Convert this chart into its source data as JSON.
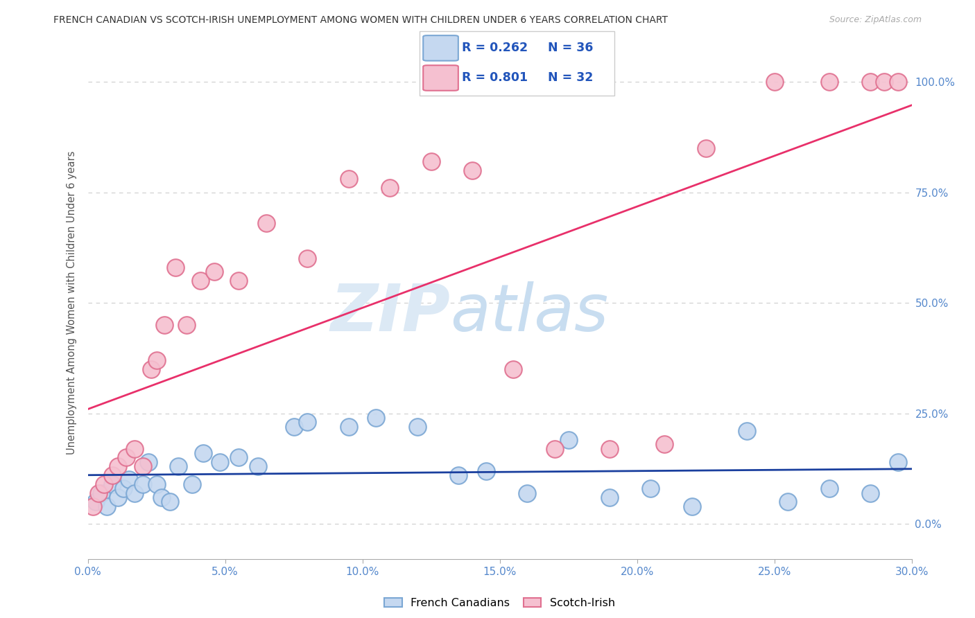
{
  "title": "FRENCH CANADIAN VS SCOTCH-IRISH UNEMPLOYMENT AMONG WOMEN WITH CHILDREN UNDER 6 YEARS CORRELATION CHART",
  "source": "Source: ZipAtlas.com",
  "ylabel": "Unemployment Among Women with Children Under 6 years",
  "xlim": [
    0.0,
    30.0
  ],
  "ylim": [
    -8.0,
    108.0
  ],
  "ylim_data": [
    0.0,
    100.0
  ],
  "xticks": [
    0.0,
    5.0,
    10.0,
    15.0,
    20.0,
    25.0,
    30.0
  ],
  "yticks": [
    0.0,
    25.0,
    50.0,
    75.0,
    100.0
  ],
  "legend_r1": "R = 0.262",
  "legend_n1": "N = 36",
  "legend_r2": "R = 0.801",
  "legend_n2": "N = 32",
  "color_fc_face": "#c5d8f0",
  "color_fc_edge": "#7ba7d4",
  "color_si_face": "#f5c0d0",
  "color_si_edge": "#e07090",
  "color_fc_line": "#1a3f9e",
  "color_si_line": "#e8306a",
  "color_title": "#333333",
  "color_source": "#aaaaaa",
  "color_axis": "#5588cc",
  "color_grid": "#cccccc",
  "color_legend_text": "#2255bb",
  "color_legend_text2": "#333333",
  "label_fc": "French Canadians",
  "label_si": "Scotch-Irish",
  "fc_x": [
    0.3,
    0.5,
    0.7,
    0.9,
    1.1,
    1.3,
    1.5,
    1.7,
    2.0,
    2.2,
    2.5,
    2.7,
    3.0,
    3.3,
    3.8,
    4.2,
    4.8,
    5.5,
    6.2,
    7.5,
    8.0,
    9.5,
    10.5,
    12.0,
    13.5,
    14.5,
    16.0,
    17.5,
    19.0,
    20.5,
    22.0,
    24.0,
    25.5,
    27.0,
    28.5,
    29.5
  ],
  "fc_y": [
    5.0,
    7.0,
    4.0,
    9.0,
    6.0,
    8.0,
    10.0,
    7.0,
    9.0,
    14.0,
    9.0,
    6.0,
    5.0,
    13.0,
    9.0,
    16.0,
    14.0,
    15.0,
    13.0,
    22.0,
    23.0,
    22.0,
    24.0,
    22.0,
    11.0,
    12.0,
    7.0,
    19.0,
    6.0,
    8.0,
    4.0,
    21.0,
    5.0,
    8.0,
    7.0,
    14.0
  ],
  "si_x": [
    0.2,
    0.4,
    0.6,
    0.9,
    1.1,
    1.4,
    1.7,
    2.0,
    2.3,
    2.5,
    2.8,
    3.2,
    3.6,
    4.1,
    4.6,
    5.5,
    6.5,
    8.0,
    9.5,
    11.0,
    12.5,
    14.0,
    15.5,
    17.0,
    19.0,
    21.0,
    22.5,
    25.0,
    27.0,
    28.5,
    29.0,
    29.5
  ],
  "si_y": [
    4.0,
    7.0,
    9.0,
    11.0,
    13.0,
    15.0,
    17.0,
    13.0,
    35.0,
    37.0,
    45.0,
    58.0,
    45.0,
    55.0,
    57.0,
    55.0,
    68.0,
    60.0,
    78.0,
    76.0,
    82.0,
    80.0,
    35.0,
    17.0,
    17.0,
    18.0,
    85.0,
    100.0,
    100.0,
    100.0,
    100.0,
    100.0
  ]
}
